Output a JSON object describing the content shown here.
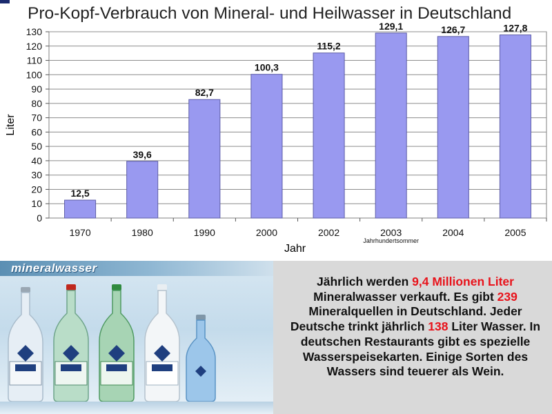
{
  "chart_data": {
    "type": "bar",
    "title": "Pro-Kopf-Verbrauch von Mineral- und Heilwasser in Deutschland",
    "xlabel": "Jahr",
    "ylabel": "Liter",
    "categories": [
      "1970",
      "1980",
      "1990",
      "2000",
      "2002",
      "2003",
      "2004",
      "2005"
    ],
    "values": [
      12.5,
      39.6,
      82.7,
      100.3,
      115.2,
      129.1,
      126.7,
      127.8
    ],
    "value_labels": [
      "12,5",
      "39,6",
      "82,7",
      "100,3",
      "115,2",
      "129,1",
      "126,7",
      "127,8"
    ],
    "category_annotations": {
      "2003": "Jahrhundertsommer"
    },
    "ylim": [
      0,
      130
    ],
    "yticks": [
      0,
      10,
      20,
      30,
      40,
      50,
      60,
      70,
      80,
      90,
      100,
      110,
      120,
      130
    ],
    "grid": true,
    "legend": "none",
    "bar_color": "#9999f0"
  },
  "photo": {
    "brand": "mineralwasser"
  },
  "info": {
    "text_1": "Jährlich werden ",
    "hl_1": "9,4 Millionen Liter",
    "text_2": " Mineralwasser verkauft. Es gibt ",
    "hl_2": "239",
    "text_3": " Mineralquellen in Deutschland. Jeder Deutsche trinkt jährlich ",
    "hl_3": "138",
    "text_4": " Liter Wasser. In deutschen Restaurants gibt es spezielle Wasserspeisekarten. Einige Sorten des Wassers sind teuerer als Wein."
  },
  "colors": {
    "highlight": "#e8131b",
    "panel_bg": "#d9d9d9"
  }
}
